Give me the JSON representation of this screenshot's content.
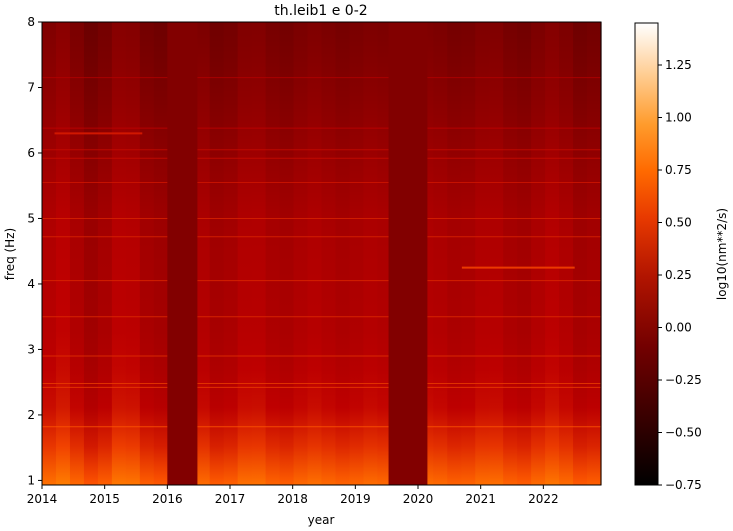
{
  "chart_data": {
    "type": "heatmap",
    "title": "th.leib1 e 0-2",
    "xlabel": "year",
    "ylabel": "freq (Hz)",
    "colorbar_label": "log10(nm**2/s)",
    "colormap": "gist_heat",
    "xlim": [
      2014.0,
      2022.92
    ],
    "ylim": [
      0.93,
      8.0
    ],
    "clim": [
      -0.75,
      1.45
    ],
    "x_ticks": [
      2014,
      2015,
      2016,
      2017,
      2018,
      2019,
      2020,
      2021,
      2022
    ],
    "x_tick_labels": [
      "2014",
      "2015",
      "2016",
      "2017",
      "2018",
      "2019",
      "2020",
      "2021",
      "2022"
    ],
    "y_ticks": [
      1,
      2,
      3,
      4,
      5,
      6,
      7,
      8
    ],
    "y_tick_labels": [
      "1",
      "2",
      "3",
      "4",
      "5",
      "6",
      "7",
      "8"
    ],
    "colorbar_ticks": [
      -0.75,
      -0.5,
      -0.25,
      0.0,
      0.25,
      0.5,
      0.75,
      1.0,
      1.25
    ],
    "colorbar_tick_labels": [
      "−0.75",
      "−0.50",
      "−0.25",
      "0.00",
      "0.25",
      "0.50",
      "0.75",
      "1.00",
      "1.25"
    ],
    "data_gaps": [
      {
        "x_start": 2016.0,
        "x_end": 2016.48,
        "value": 0.0
      },
      {
        "x_start": 2019.53,
        "x_end": 2020.15,
        "value": 0.0
      }
    ],
    "level_by_frequency": [
      {
        "freq": 1.0,
        "value": 0.8
      },
      {
        "freq": 1.5,
        "value": 0.55
      },
      {
        "freq": 2.0,
        "value": 0.38
      },
      {
        "freq": 3.0,
        "value": 0.27
      },
      {
        "freq": 4.0,
        "value": 0.25
      },
      {
        "freq": 5.0,
        "value": 0.22
      },
      {
        "freq": 6.0,
        "value": 0.12
      },
      {
        "freq": 7.0,
        "value": 0.02
      },
      {
        "freq": 8.0,
        "value": -0.05
      }
    ],
    "persistent_lines_hz": [
      1.82,
      2.42,
      2.48,
      2.9,
      3.5,
      4.05,
      4.72,
      5.0,
      5.55,
      5.92,
      6.05,
      6.38,
      7.15
    ],
    "event_lines": [
      {
        "x_start": 2020.7,
        "x_end": 2022.5,
        "freq": 4.25,
        "value": 0.6
      },
      {
        "x_start": 2014.2,
        "x_end": 2015.6,
        "freq": 6.3,
        "value": 0.45
      }
    ]
  }
}
